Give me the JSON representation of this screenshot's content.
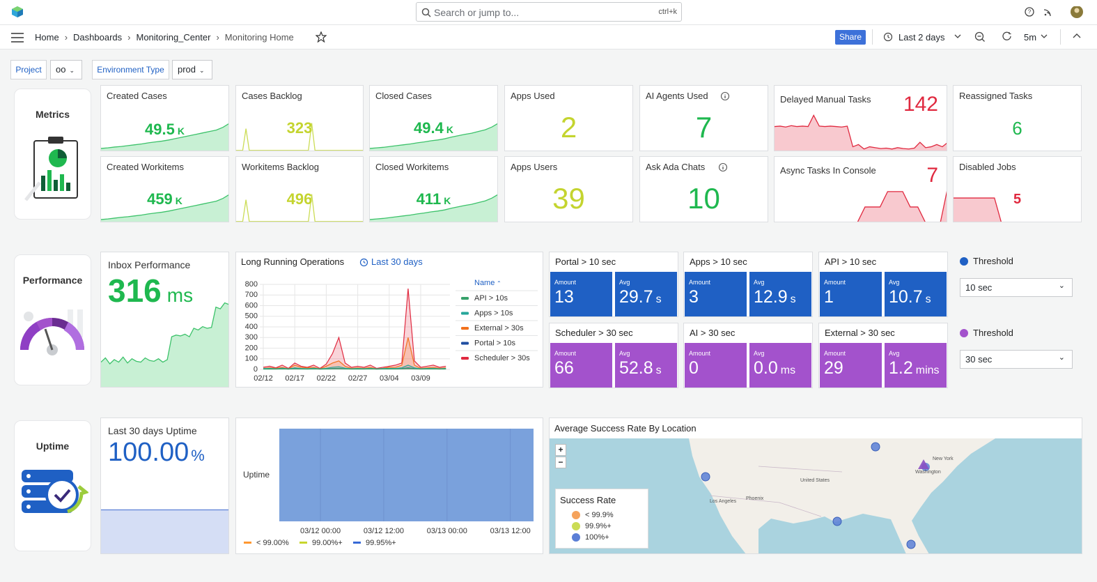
{
  "app": {
    "search": "Search or jump to...",
    "shortcut": "ctrl+k"
  },
  "breadcrumbs": [
    "Home",
    "Dashboards",
    "Monitoring_Center",
    "Monitoring Home"
  ],
  "toolbar": {
    "share": "Share",
    "time_range": "Last 2 days",
    "refresh": "5m"
  },
  "variables": [
    {
      "label": "Project",
      "value": "oo"
    },
    {
      "label": "Environment Type",
      "value": "prod"
    }
  ],
  "sections": [
    "Metrics",
    "Performance",
    "Uptime"
  ],
  "stats": [
    {
      "title": "Created Cases",
      "value": "49.5",
      "unit": "K",
      "color": "#1fb84f",
      "spark": [
        1,
        1.2,
        1.5,
        1.7,
        2,
        2.3,
        2.6,
        3,
        3.3,
        3.6,
        4,
        4.5,
        5,
        5.5,
        6,
        6.5,
        7,
        7.5,
        8.5,
        10
      ]
    },
    {
      "title": "Cases Backlog",
      "value": "323",
      "color": "#c4d42f",
      "spark": [
        0.3,
        0.3,
        0.3,
        8,
        0.3,
        0.3,
        0.3,
        0.3,
        0.3,
        0.3,
        0.3,
        0.3,
        0.3,
        0.3,
        0.3,
        0.3,
        0.3,
        0.3,
        0.3,
        0.3,
        0.3,
        0.3,
        0.3,
        10,
        0.3,
        0.3,
        0.3,
        0.3,
        0.3,
        0.3,
        0.3,
        0.3,
        0.3,
        0.3,
        0.3,
        0.3,
        0.3,
        0.3,
        0.3,
        0.3
      ]
    },
    {
      "title": "Closed Cases",
      "value": "49.4",
      "unit": "K",
      "color": "#1fb84f",
      "spark": [
        1,
        1.2,
        1.4,
        1.7,
        2,
        2.3,
        2.6,
        3,
        3.3,
        3.7,
        4,
        4.4,
        5,
        5.5,
        6,
        6.4,
        7,
        7.6,
        8.6,
        10
      ]
    },
    {
      "title": "Apps Used",
      "value": "2",
      "color": "#c4d42f"
    },
    {
      "title": "AI Agents Used",
      "value": "7",
      "color": "#1fb84f",
      "info": true
    },
    {
      "title": "Delayed Manual Tasks",
      "value": "142",
      "color": "#e0293f",
      "spark": [
        5.5,
        5.6,
        5.4,
        5.7,
        5.5,
        5.6,
        5.5,
        8,
        5.6,
        5.5,
        5.6,
        5.5,
        5.4,
        5.6,
        1,
        1.5,
        0.5,
        1,
        0.8,
        0.6,
        0.7,
        0.5,
        0.8,
        0.6,
        0.5,
        0.7,
        2,
        0.8,
        1,
        1.5,
        1,
        2
      ]
    },
    {
      "title": "Reassigned Tasks",
      "value": "6",
      "color": "#1fb84f"
    },
    {
      "title": "Created Workitems",
      "value": "459",
      "unit": "K",
      "color": "#1fb84f",
      "spark": [
        1,
        1.2,
        1.5,
        1.8,
        2,
        2.3,
        2.6,
        3,
        3.3,
        3.6,
        4,
        4.5,
        5,
        5.5,
        6,
        6.5,
        7,
        7.5,
        8.5,
        10
      ]
    },
    {
      "title": "Workitems Backlog",
      "value": "496",
      "color": "#c4d42f",
      "spark": [
        0.3,
        0.3,
        0.3,
        8,
        0.3,
        0.3,
        0.3,
        0.3,
        0.3,
        0.3,
        0.3,
        0.3,
        0.3,
        0.3,
        0.3,
        0.3,
        0.3,
        0.3,
        0.3,
        0.3,
        0.3,
        0.3,
        0.3,
        10,
        0.3,
        0.3,
        0.3,
        0.3,
        0.3,
        0.3,
        0.3,
        0.3,
        0.3,
        0.3,
        0.3,
        0.3,
        0.3,
        0.3,
        0.3,
        0.3
      ]
    },
    {
      "title": "Closed Workitems",
      "value": "411",
      "unit": "K",
      "color": "#1fb84f",
      "spark": [
        1,
        1.2,
        1.4,
        1.7,
        2,
        2.3,
        2.6,
        3,
        3.3,
        3.7,
        4,
        4.4,
        5,
        5.5,
        6,
        6.4,
        7,
        7.6,
        8.6,
        10
      ]
    },
    {
      "title": "Apps Users",
      "value": "39",
      "color": "#c4d42f"
    },
    {
      "title": "Ask Ada Chats",
      "value": "10",
      "color": "#1fb84f",
      "info": true
    },
    {
      "title": "Async Tasks In Console",
      "value": "7",
      "color": "#e0293f",
      "spark": [
        0,
        0,
        0,
        0,
        0,
        0,
        0,
        0,
        0,
        0,
        0,
        0,
        3,
        3,
        3,
        6,
        6,
        6,
        3,
        3,
        0,
        0,
        0,
        7
      ]
    },
    {
      "title": "Disabled Jobs",
      "value": "5",
      "color": "#e0293f",
      "spark": [
        5,
        5,
        5,
        5,
        5,
        5,
        5,
        0,
        0,
        0,
        0,
        0,
        0,
        0,
        0,
        0,
        0,
        0
      ]
    }
  ],
  "inbox": {
    "title": "Inbox Performance",
    "value": "316",
    "unit": "ms",
    "color": "#1fb84f",
    "spark": [
      30,
      35,
      28,
      33,
      30,
      36,
      29,
      34,
      31,
      30,
      35,
      32,
      31,
      34,
      30,
      33,
      60,
      62,
      61,
      63,
      60,
      70,
      68,
      72,
      70,
      71,
      95,
      93,
      100,
      98
    ]
  },
  "tile_labels": {
    "amount": "Amount",
    "avg": "Avg"
  },
  "operations": [
    {
      "title": "Portal > 10 sec",
      "amount": "13",
      "avg": "29.7",
      "unit": "s",
      "color": "#1f60c4"
    },
    {
      "title": "Apps > 10 sec",
      "amount": "3",
      "avg": "12.9",
      "unit": "s",
      "color": "#1f60c4"
    },
    {
      "title": "API > 10 sec",
      "amount": "1",
      "avg": "10.7",
      "unit": "s",
      "color": "#1f60c4"
    },
    {
      "title": "Scheduler > 30 sec",
      "amount": "66",
      "avg": "52.8",
      "unit": "s",
      "color": "#a352cc"
    },
    {
      "title": "AI > 30 sec",
      "amount": "0",
      "avg": "0.0",
      "unit": "ms",
      "color": "#a352cc"
    },
    {
      "title": "External > 30 sec",
      "amount": "29",
      "avg": "1.2",
      "unit": "mins",
      "color": "#a352cc"
    }
  ],
  "thresholds": [
    {
      "label": "Threshold",
      "value": "10 sec",
      "color": "#1f60c4"
    },
    {
      "label": "Threshold",
      "value": "30 sec",
      "color": "#a352cc"
    }
  ],
  "uptime_stat": {
    "title": "Last 30 days Uptime",
    "value": "100.00",
    "unit": "%",
    "color": "#1f60c4",
    "spark": [
      100,
      100,
      100,
      100,
      100,
      100
    ]
  },
  "chart_data": [
    {
      "type": "line",
      "title": "Long Running Operations",
      "subtitle": "Last 30 days",
      "legend_title": "Name",
      "categories": [
        "02/12",
        null,
        null,
        null,
        null,
        "02/17",
        null,
        null,
        null,
        null,
        "02/22",
        null,
        null,
        null,
        null,
        "02/27",
        null,
        null,
        null,
        null,
        "03/04",
        null,
        null,
        null,
        null,
        "03/09",
        null,
        null,
        null,
        null
      ],
      "ylim": [
        0,
        800
      ],
      "yticks": [
        0,
        100,
        200,
        300,
        400,
        500,
        600,
        700,
        800
      ],
      "grid": true,
      "series": [
        {
          "name": "API > 10s",
          "color": "#37a26b",
          "values": [
            3,
            4,
            3,
            5,
            3,
            6,
            4,
            3,
            5,
            3,
            4,
            6,
            8,
            5,
            3,
            4,
            3,
            5,
            3,
            4,
            5,
            4,
            6,
            10,
            6,
            3,
            4,
            5,
            3,
            4
          ]
        },
        {
          "name": "Apps > 10s",
          "color": "#26a69a",
          "values": [
            8,
            10,
            6,
            12,
            5,
            15,
            9,
            7,
            11,
            5,
            10,
            20,
            25,
            12,
            6,
            9,
            7,
            10,
            5,
            8,
            10,
            9,
            15,
            40,
            15,
            6,
            9,
            10,
            6,
            9
          ]
        },
        {
          "name": "External > 30s",
          "color": "#f2711c",
          "values": [
            10,
            15,
            10,
            20,
            5,
            40,
            20,
            15,
            20,
            5,
            30,
            60,
            80,
            30,
            10,
            15,
            10,
            20,
            5,
            10,
            20,
            20,
            40,
            300,
            40,
            10,
            15,
            20,
            10,
            15
          ]
        },
        {
          "name": "Portal > 10s",
          "color": "#1f4ea1",
          "values": [
            4,
            5,
            4,
            6,
            3,
            8,
            5,
            4,
            6,
            3,
            5,
            8,
            10,
            6,
            4,
            5,
            4,
            6,
            3,
            5,
            6,
            5,
            8,
            15,
            8,
            4,
            5,
            6,
            4,
            5
          ]
        },
        {
          "name": "Scheduler > 30s",
          "color": "#e0293f",
          "values": [
            20,
            30,
            15,
            40,
            10,
            60,
            30,
            20,
            40,
            10,
            50,
            150,
            300,
            60,
            20,
            30,
            20,
            40,
            10,
            20,
            30,
            40,
            60,
            760,
            80,
            20,
            30,
            40,
            20,
            30
          ]
        }
      ]
    },
    {
      "type": "bar",
      "ylabel": "Uptime",
      "color": "#7aa1dc",
      "xlim": [
        -7.8,
        40.4
      ],
      "ylim": [
        0,
        100
      ],
      "xticks": [
        {
          "value": 0,
          "label": "03/12 00:00"
        },
        {
          "value": 12,
          "label": "03/12 12:00"
        },
        {
          "value": 24,
          "label": "03/13 00:00"
        },
        {
          "value": 36,
          "label": "03/13 12:00"
        }
      ],
      "values": [
        100
      ],
      "legend": [
        {
          "name": "< 99.00%",
          "color": "#ff9830"
        },
        {
          "name": "99.00%+",
          "color": "#c8d62d"
        },
        {
          "name": "99.95%+",
          "color": "#3769d6"
        }
      ]
    }
  ],
  "map": {
    "title": "Average Success Rate By Location",
    "legend_title": "Success Rate",
    "zoom": [
      "+",
      "−"
    ],
    "legend": [
      {
        "name": "< 99.9%",
        "color": "#f5a35c"
      },
      {
        "name": "99.9%+",
        "color": "#cbdc55"
      },
      {
        "name": "100%+",
        "color": "#5b7fd6"
      }
    ],
    "labels": [
      "United States",
      "Los Angeles",
      "Phoenix",
      "New York",
      "Washington"
    ]
  }
}
